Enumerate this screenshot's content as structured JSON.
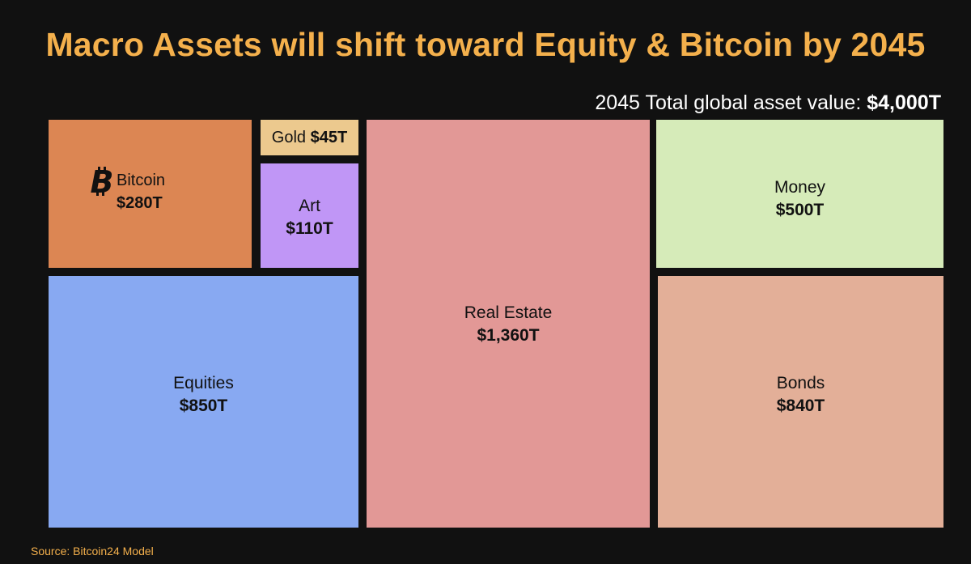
{
  "title": "Macro Assets will shift toward Equity & Bitcoin by 2045",
  "total": {
    "label": "2045 Total global asset value:",
    "value": "$4,000T"
  },
  "source": "Source: Bitcoin24 Model",
  "chart_data": {
    "type": "treemap",
    "units": "USD trillions",
    "total": 4000,
    "items": [
      {
        "name": "Bitcoin",
        "value": 280,
        "label": "$280T",
        "color": "#dc8653",
        "icon": "bitcoin-icon"
      },
      {
        "name": "Gold",
        "value": 45,
        "label": "$45T",
        "color": "#ecc98e"
      },
      {
        "name": "Art",
        "value": 110,
        "label": "$110T",
        "color": "#c096f6"
      },
      {
        "name": "Equities",
        "value": 850,
        "label": "$850T",
        "color": "#88a9f2"
      },
      {
        "name": "Real Estate",
        "value": 1360,
        "label": "$1,360T",
        "color": "#e29896"
      },
      {
        "name": "Money",
        "value": 500,
        "label": "$500T",
        "color": "#d6ebb9"
      },
      {
        "name": "Bonds",
        "value": 840,
        "label": "$840T",
        "color": "#e3af98"
      }
    ]
  }
}
